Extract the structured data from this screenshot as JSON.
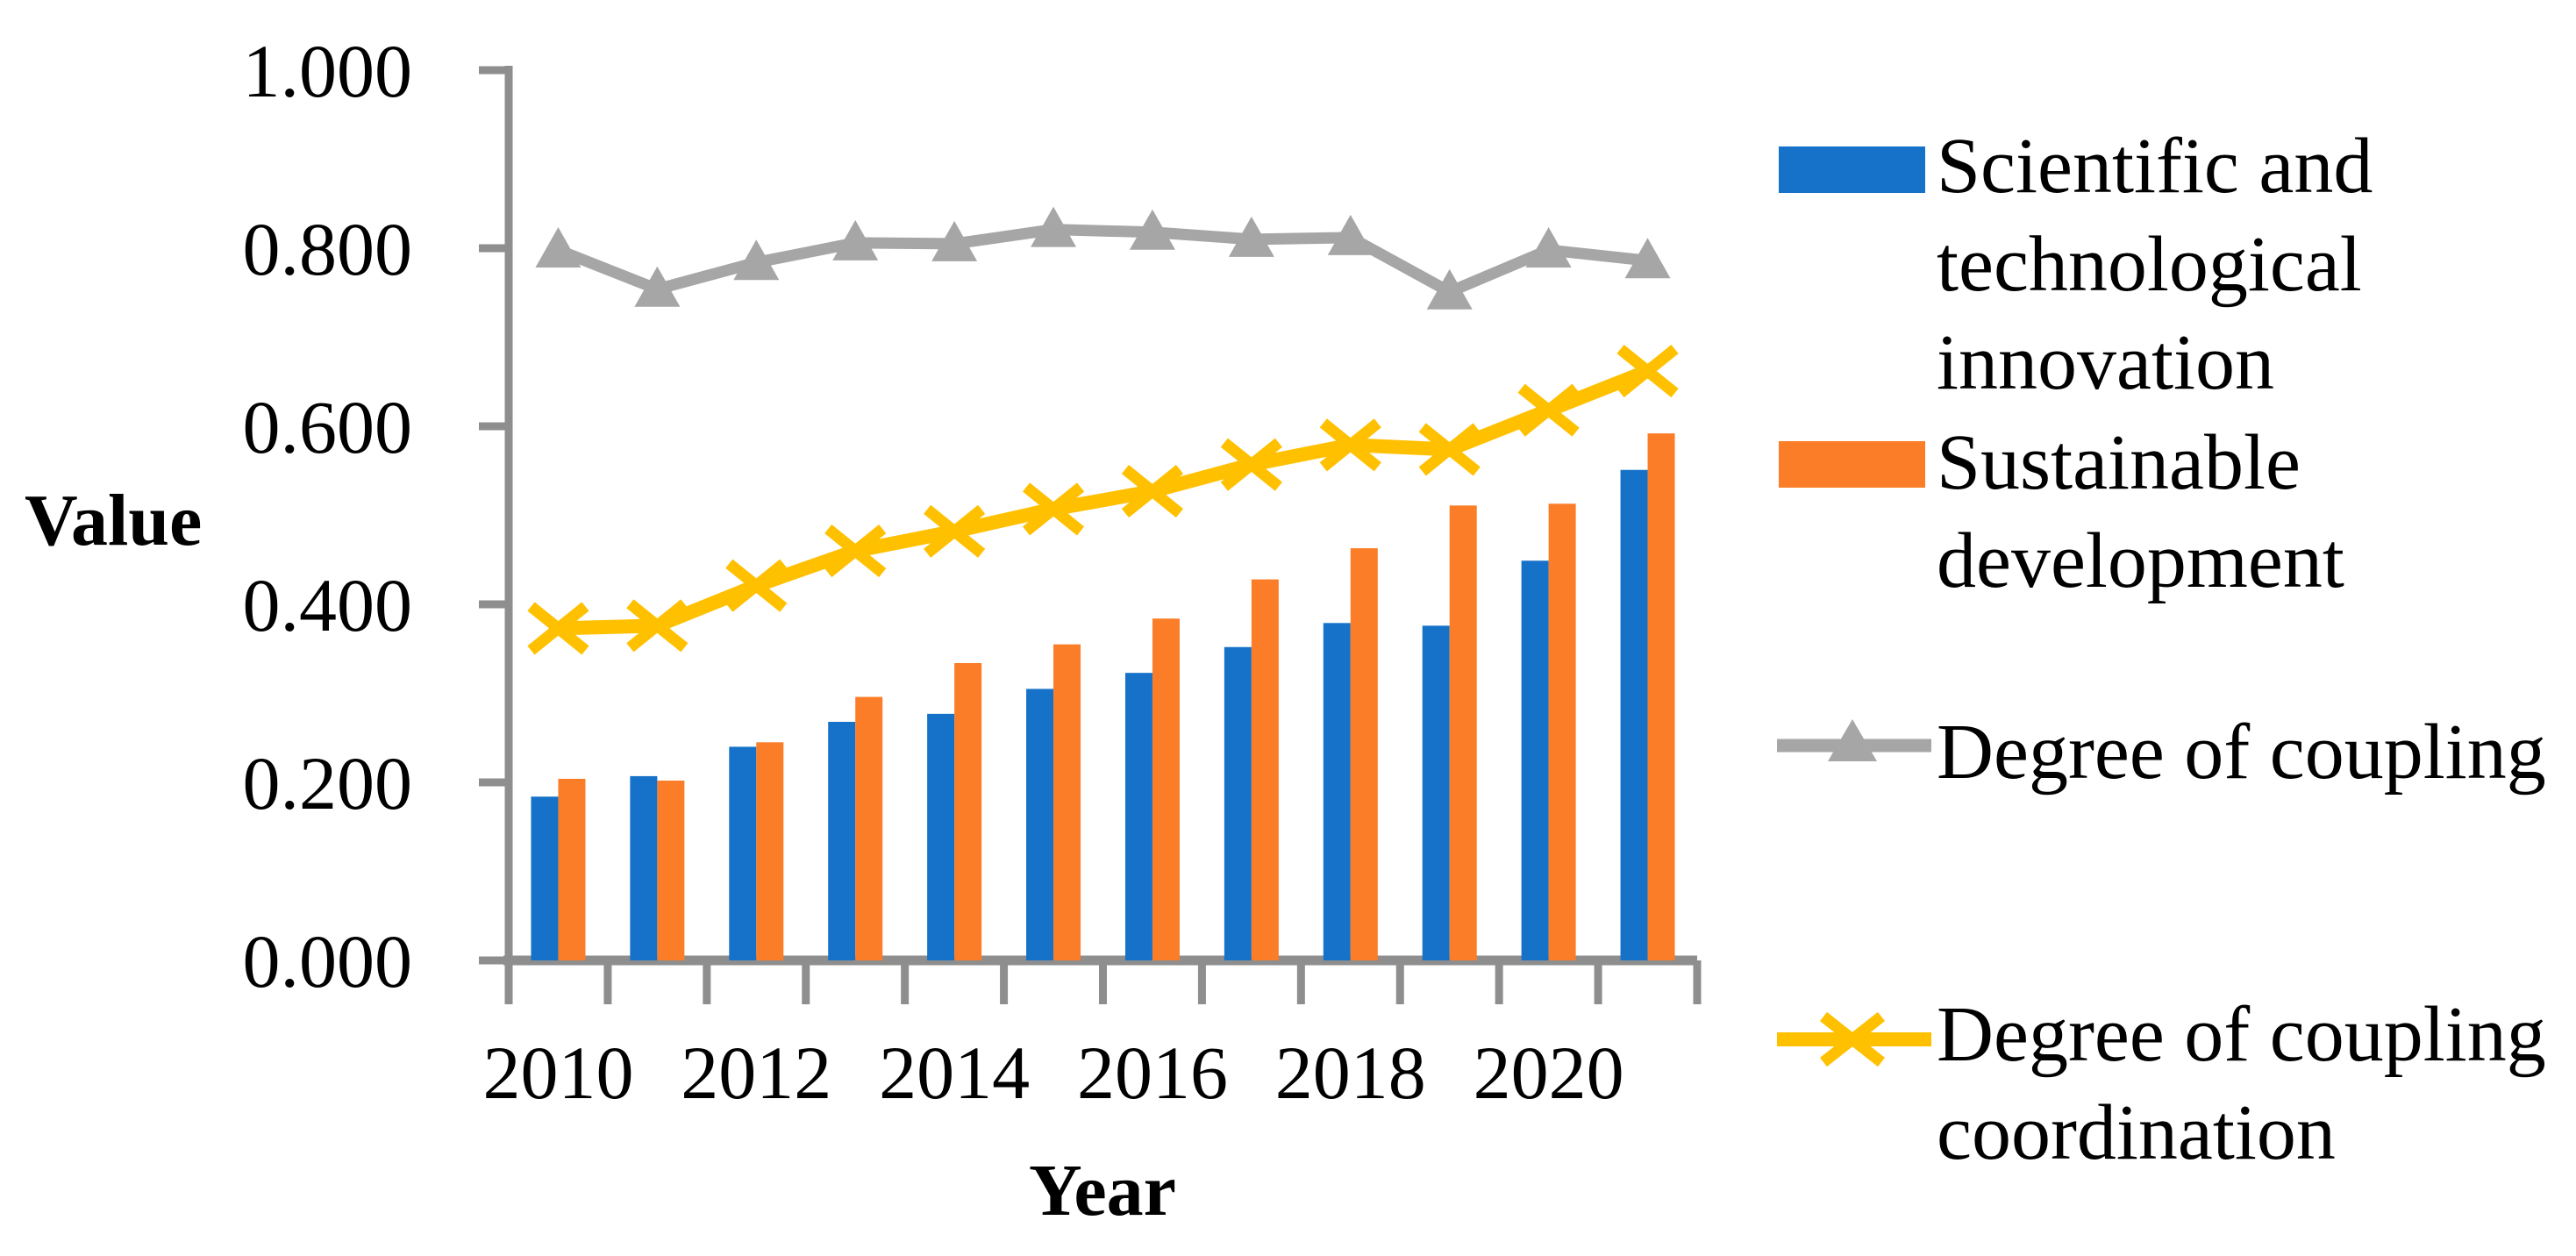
{
  "figure": {
    "background": "#ffffff",
    "axis_color": "#8E8E8E",
    "text_color": "#000000"
  },
  "axes": {
    "y_title": "Value",
    "x_title": "Year"
  },
  "chart_data": {
    "type": "bar-line-combo",
    "title": "",
    "xlabel": "Year",
    "ylabel": "Value",
    "ylim": [
      0,
      1
    ],
    "grid": false,
    "legend_position": "right",
    "y_tick_labels": [
      "0.000",
      "0.200",
      "0.400",
      "0.600",
      "0.800",
      "1.000"
    ],
    "x_tick_labels": [
      "2010",
      "2012",
      "2014",
      "2016",
      "2018",
      "2020"
    ],
    "categories": [
      "2010",
      "2011",
      "2012",
      "2013",
      "2014",
      "2015",
      "2016",
      "2017",
      "2018",
      "2019",
      "2020",
      "2021"
    ],
    "series": [
      {
        "name": "Scientific and technological innovation",
        "type": "bar",
        "color": "#1672C8",
        "values": [
          0.184,
          0.207,
          0.24,
          0.268,
          0.277,
          0.305,
          0.323,
          0.352,
          0.379,
          0.376,
          0.449,
          0.551
        ]
      },
      {
        "name": "Sustainable development",
        "type": "bar",
        "color": "#FB7D28",
        "values": [
          0.204,
          0.202,
          0.245,
          0.296,
          0.334,
          0.355,
          0.384,
          0.428,
          0.463,
          0.511,
          0.513,
          0.592
        ]
      },
      {
        "name": "Degree of coupling",
        "type": "line",
        "marker": "triangle",
        "color": "#A6A6A6",
        "values": [
          0.798,
          0.754,
          0.784,
          0.806,
          0.805,
          0.821,
          0.818,
          0.81,
          0.812,
          0.751,
          0.798,
          0.786
        ]
      },
      {
        "name": "Degree of coupling coordination",
        "type": "line",
        "marker": "x",
        "color": "#FFC000",
        "values": [
          0.373,
          0.376,
          0.421,
          0.46,
          0.482,
          0.507,
          0.527,
          0.557,
          0.579,
          0.574,
          0.618,
          0.662
        ]
      }
    ]
  },
  "legend": {
    "items": [
      {
        "label": "Scientific and\ntechnological\ninnovation",
        "swatch": "bar",
        "color": "#1672C8"
      },
      {
        "label": "Sustainable\ndevelopment",
        "swatch": "bar",
        "color": "#FB7D28"
      },
      {
        "label": "Degree of coupling",
        "swatch": "line-triangle",
        "color": "#A6A6A6"
      },
      {
        "label": "Degree of coupling\ncoordination",
        "swatch": "line-x",
        "color": "#FFC000"
      }
    ]
  }
}
